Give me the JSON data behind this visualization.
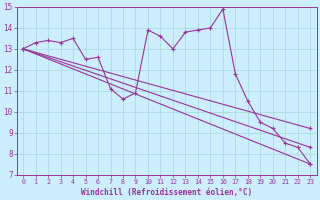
{
  "background_color": "#cceeff",
  "line_color": "#993399",
  "grid_color": "#aadddd",
  "xlabel": "Windchill (Refroidissement éolien,°C)",
  "xlim": [
    -0.5,
    23.5
  ],
  "ylim": [
    7,
    15
  ],
  "xticks": [
    0,
    1,
    2,
    3,
    4,
    5,
    6,
    7,
    8,
    9,
    10,
    11,
    12,
    13,
    14,
    15,
    16,
    17,
    18,
    19,
    20,
    21,
    22,
    23
  ],
  "yticks": [
    7,
    8,
    9,
    10,
    11,
    12,
    13,
    14,
    15
  ],
  "main_series": {
    "x": [
      0,
      1,
      2,
      3,
      4,
      5,
      6,
      7,
      8,
      9,
      10,
      11,
      12,
      13,
      14,
      15,
      16,
      17,
      18,
      19,
      20,
      21,
      22,
      23
    ],
    "y": [
      13.0,
      13.3,
      13.4,
      13.3,
      13.5,
      12.5,
      12.6,
      11.1,
      10.6,
      10.9,
      13.9,
      13.6,
      13.0,
      13.8,
      13.9,
      14.0,
      14.9,
      11.8,
      10.5,
      9.5,
      9.2,
      8.5,
      8.3,
      7.5
    ]
  },
  "trend_lines": [
    {
      "x": [
        0,
        23
      ],
      "y": [
        13.0,
        7.5
      ]
    },
    {
      "x": [
        0,
        23
      ],
      "y": [
        13.0,
        8.3
      ]
    },
    {
      "x": [
        0,
        23
      ],
      "y": [
        13.0,
        9.2
      ]
    }
  ]
}
